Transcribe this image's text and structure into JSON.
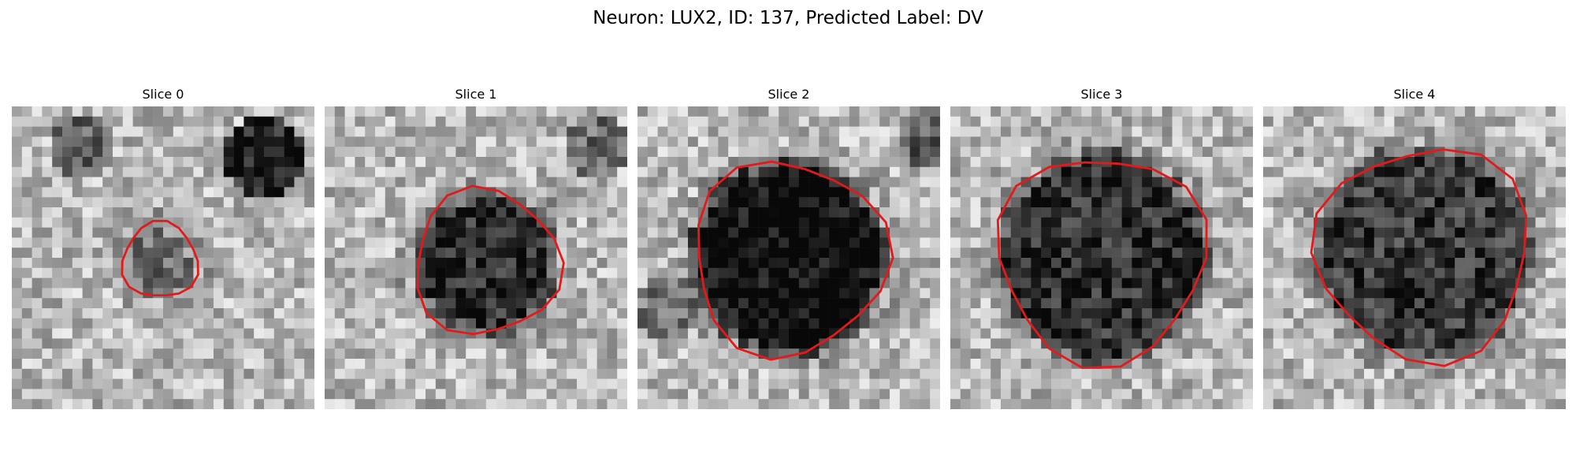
{
  "title": "Neuron: LUX2, ID: 137, Predicted Label: DV",
  "slices": [
    {
      "label": "Slice 0"
    },
    {
      "label": "Slice 1"
    },
    {
      "label": "Slice 2"
    },
    {
      "label": "Slice 3"
    },
    {
      "label": "Slice 4"
    }
  ],
  "colors": {
    "contour": "#e31a1c"
  }
}
